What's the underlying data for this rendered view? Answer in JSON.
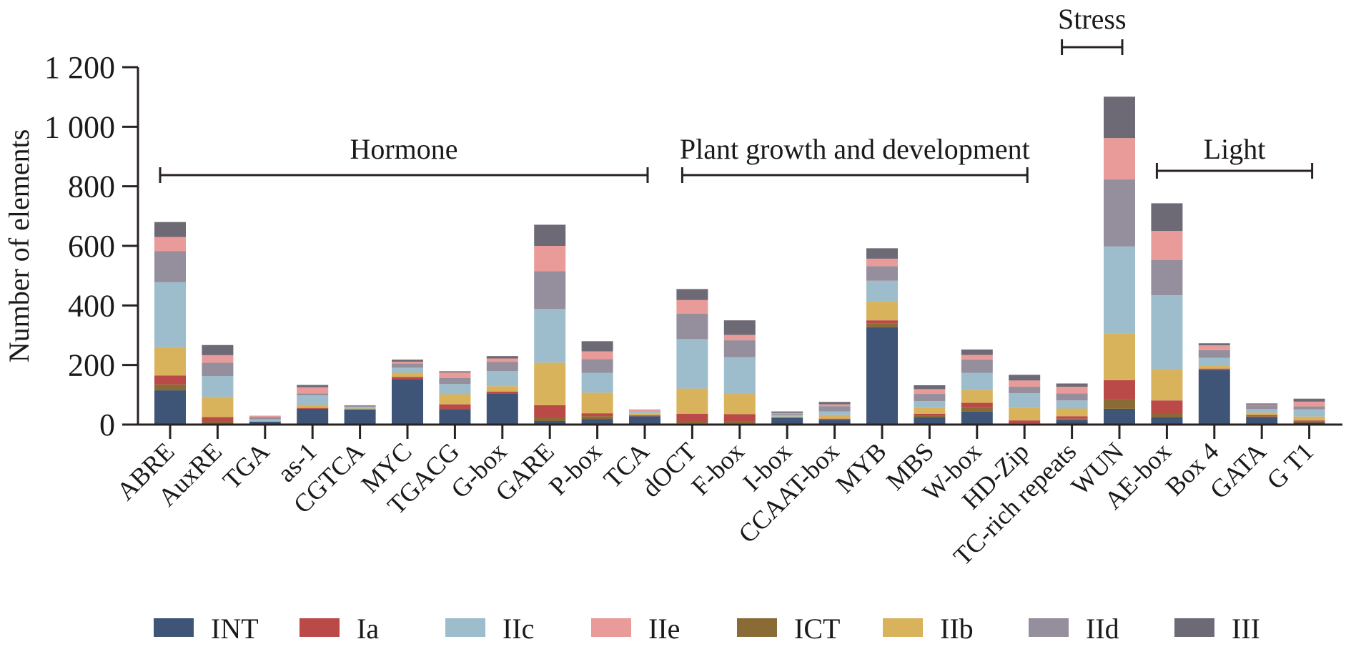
{
  "chart_data": {
    "type": "bar",
    "stacked": true,
    "title": "",
    "xlabel": "",
    "ylabel": "Number of elements",
    "ylim": [
      0,
      1200
    ],
    "yticks": [
      0,
      200,
      400,
      600,
      800,
      1000,
      1200
    ],
    "ytick_labels": [
      "0",
      "200",
      "400",
      "600",
      "800",
      "1 000",
      "1 200"
    ],
    "grid": false,
    "legend_position": "bottom",
    "categories": [
      "ABRE",
      "AuxRE",
      "TGA",
      "as-1",
      "CGTCA",
      "MYC",
      "TGACG",
      "G-box",
      "GARE",
      "P-box",
      "TCA",
      "dOCT",
      "F-box",
      "I-box",
      "CCAAT-box",
      "MYB",
      "MBS",
      "W-box",
      "HD-Zip",
      "TC-rich repeats",
      "WUN",
      "AE-box",
      "Box 4",
      "GATA",
      "G T1"
    ],
    "series": [
      {
        "name": "INT",
        "color": "#3f5577",
        "values": [
          115,
          3,
          10,
          53,
          51,
          153,
          52,
          105,
          12,
          18,
          28,
          4,
          4,
          22,
          16,
          327,
          24,
          44,
          4,
          15,
          53,
          24,
          183,
          24,
          6
        ]
      },
      {
        "name": "ICT",
        "color": "#8a6a35",
        "values": [
          20,
          9,
          0,
          0,
          0,
          0,
          0,
          0,
          12,
          10,
          0,
          8,
          7,
          0,
          0,
          12,
          5,
          13,
          0,
          5,
          32,
          12,
          0,
          4,
          4
        ]
      },
      {
        "name": "Ia",
        "color": "#b94a48",
        "values": [
          30,
          13,
          0,
          3,
          0,
          7,
          16,
          6,
          41,
          10,
          3,
          24,
          24,
          2,
          4,
          11,
          7,
          16,
          10,
          8,
          64,
          45,
          5,
          4,
          4
        ]
      },
      {
        "name": "IIb",
        "color": "#d9b25c",
        "values": [
          95,
          68,
          0,
          10,
          3,
          14,
          34,
          18,
          143,
          69,
          7,
          85,
          68,
          3,
          12,
          65,
          21,
          43,
          43,
          26,
          156,
          106,
          10,
          8,
          13
        ]
      },
      {
        "name": "IIc",
        "color": "#9dbccc",
        "values": [
          218,
          70,
          8,
          32,
          6,
          17,
          34,
          51,
          180,
          67,
          5,
          166,
          123,
          5,
          12,
          68,
          22,
          58,
          48,
          27,
          293,
          247,
          26,
          12,
          24
        ]
      },
      {
        "name": "IId",
        "color": "#958e9c",
        "values": [
          104,
          45,
          7,
          7,
          5,
          14,
          20,
          30,
          127,
          46,
          0,
          85,
          57,
          4,
          18,
          49,
          24,
          44,
          22,
          24,
          225,
          118,
          26,
          13,
          10
        ]
      },
      {
        "name": "IIe",
        "color": "#e89b98",
        "values": [
          48,
          25,
          5,
          20,
          0,
          6,
          19,
          12,
          85,
          26,
          8,
          46,
          18,
          3,
          6,
          25,
          16,
          16,
          21,
          22,
          139,
          98,
          16,
          2,
          16
        ]
      },
      {
        "name": "III",
        "color": "#6e6a75",
        "values": [
          50,
          34,
          0,
          8,
          0,
          7,
          4,
          8,
          71,
          34,
          0,
          37,
          49,
          5,
          8,
          35,
          13,
          18,
          19,
          11,
          139,
          93,
          7,
          4,
          10
        ]
      }
    ],
    "legend_order": [
      "INT",
      "Ia",
      "IIc",
      "IIe",
      "ICT",
      "IIb",
      "IId",
      "III"
    ],
    "annotations": [
      {
        "label": "Hormone",
        "from": "ABRE",
        "to": "TCA"
      },
      {
        "label": "Plant growth and development",
        "from": "dOCT",
        "to": "HD-Zip"
      },
      {
        "label": "Stress",
        "from": "TC-rich repeats",
        "to": "WUN"
      },
      {
        "label": "Light",
        "from": "AE-box",
        "to": "G T1"
      }
    ]
  }
}
